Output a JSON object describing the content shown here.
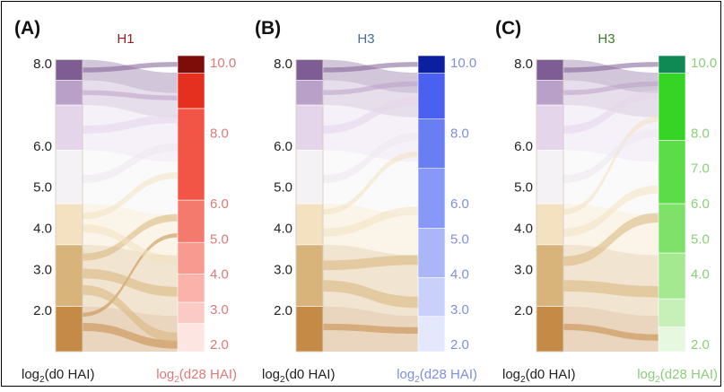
{
  "chart_data": [
    {
      "type": "sankey",
      "panel_label": "(A)",
      "title": "H1",
      "title_color": "#9b1c1c",
      "left_axis_label": "d0 HAI",
      "right_axis_label": "d28 HAI",
      "left_ticks": [
        2.0,
        3.0,
        4.0,
        5.0,
        6.0,
        8.0
      ],
      "right_ticks": [
        2.0,
        3.0,
        4.0,
        5.0,
        6.0,
        8.0,
        10.0
      ],
      "right_tick_color": "#e07a78",
      "left_segments": [
        {
          "from": 1.0,
          "to": 2.1,
          "color": "#c48a46",
          "opacity": 1.0
        },
        {
          "from": 2.1,
          "to": 3.6,
          "color": "#d8b47a",
          "opacity": 1.0
        },
        {
          "from": 3.6,
          "to": 4.6,
          "color": "#f3e1bf",
          "opacity": 1.0
        },
        {
          "from": 4.6,
          "to": 5.9,
          "color": "#f4f2f4",
          "opacity": 1.0
        },
        {
          "from": 5.9,
          "to": 7.0,
          "color": "#e4d5ea",
          "opacity": 1.0
        },
        {
          "from": 7.0,
          "to": 7.6,
          "color": "#b9a0c8",
          "opacity": 1.0
        },
        {
          "from": 7.6,
          "to": 8.1,
          "color": "#7e5d94",
          "opacity": 1.0
        }
      ],
      "right_segments": [
        {
          "from": 1.8,
          "to": 2.6,
          "color": "#fde5e2"
        },
        {
          "from": 2.6,
          "to": 3.2,
          "color": "#fbcac4"
        },
        {
          "from": 3.2,
          "to": 4.0,
          "color": "#fab2aa"
        },
        {
          "from": 4.0,
          "to": 4.9,
          "color": "#f89a90"
        },
        {
          "from": 4.9,
          "to": 6.1,
          "color": "#f57a6e"
        },
        {
          "from": 6.1,
          "to": 8.7,
          "color": "#f25546"
        },
        {
          "from": 8.7,
          "to": 9.7,
          "color": "#e6301f"
        },
        {
          "from": 9.7,
          "to": 10.2,
          "color": "#7e0d0a"
        }
      ],
      "flows": [
        {
          "from": 1.6,
          "to": 2.0,
          "width": 0.5,
          "color": "#c48a46"
        },
        {
          "from": 1.9,
          "to": 5.1,
          "width": 0.25,
          "color": "#c48a46"
        },
        {
          "from": 2.5,
          "to": 2.2,
          "width": 0.6,
          "color": "#d8b47a"
        },
        {
          "from": 2.9,
          "to": 3.5,
          "width": 0.6,
          "color": "#d8b47a"
        },
        {
          "from": 3.3,
          "to": 5.6,
          "width": 0.45,
          "color": "#d8b47a"
        },
        {
          "from": 4.0,
          "to": 4.4,
          "width": 0.5,
          "color": "#f3e1bf"
        },
        {
          "from": 4.3,
          "to": 6.8,
          "width": 0.4,
          "color": "#f3e1bf"
        },
        {
          "from": 5.2,
          "to": 7.6,
          "width": 0.5,
          "color": "#ede8ee"
        },
        {
          "from": 6.4,
          "to": 8.4,
          "width": 0.5,
          "color": "#e4d5ea"
        },
        {
          "from": 7.3,
          "to": 9.0,
          "width": 0.3,
          "color": "#b9a0c8"
        },
        {
          "from": 7.85,
          "to": 9.95,
          "width": 0.3,
          "color": "#7e5d94"
        }
      ]
    },
    {
      "type": "sankey",
      "panel_label": "(B)",
      "title": "H3",
      "title_color": "#4a6f95",
      "left_axis_label": "d0 HAI",
      "right_axis_label": "d28 HAI",
      "left_ticks": [
        2.0,
        3.0,
        4.0,
        5.0,
        6.0,
        8.0
      ],
      "right_ticks": [
        2.0,
        3.0,
        4.0,
        5.0,
        6.0,
        8.0,
        10.0
      ],
      "right_tick_color": "#7f8fe0",
      "left_segments": [
        {
          "from": 1.0,
          "to": 2.1,
          "color": "#c48a46",
          "opacity": 1.0
        },
        {
          "from": 2.1,
          "to": 3.6,
          "color": "#d8b47a",
          "opacity": 1.0
        },
        {
          "from": 3.6,
          "to": 4.6,
          "color": "#f3e1bf",
          "opacity": 1.0
        },
        {
          "from": 4.6,
          "to": 5.9,
          "color": "#f4f2f4",
          "opacity": 1.0
        },
        {
          "from": 5.9,
          "to": 7.0,
          "color": "#e4d5ea",
          "opacity": 1.0
        },
        {
          "from": 7.0,
          "to": 7.6,
          "color": "#b9a0c8",
          "opacity": 1.0
        },
        {
          "from": 7.6,
          "to": 8.1,
          "color": "#7e5d94",
          "opacity": 1.0
        }
      ],
      "right_segments": [
        {
          "from": 1.8,
          "to": 2.8,
          "color": "#e4e8fc"
        },
        {
          "from": 2.8,
          "to": 3.9,
          "color": "#c9d1fb"
        },
        {
          "from": 3.9,
          "to": 5.3,
          "color": "#a9b6f8"
        },
        {
          "from": 5.3,
          "to": 7.0,
          "color": "#8898f6"
        },
        {
          "from": 7.0,
          "to": 8.4,
          "color": "#6a7ef3"
        },
        {
          "from": 8.4,
          "to": 9.7,
          "color": "#4a61f0"
        },
        {
          "from": 9.7,
          "to": 10.2,
          "color": "#0c1f9e"
        }
      ],
      "flows": [
        {
          "from": 1.6,
          "to": 2.4,
          "width": 0.4,
          "color": "#c48a46"
        },
        {
          "from": 2.6,
          "to": 3.2,
          "width": 0.7,
          "color": "#d8b47a"
        },
        {
          "from": 3.1,
          "to": 4.4,
          "width": 0.6,
          "color": "#d8b47a"
        },
        {
          "from": 3.9,
          "to": 5.8,
          "width": 0.5,
          "color": "#f3e1bf"
        },
        {
          "from": 4.4,
          "to": 7.4,
          "width": 0.35,
          "color": "#f3e1bf"
        },
        {
          "from": 5.2,
          "to": 7.9,
          "width": 0.5,
          "color": "#ede8ee"
        },
        {
          "from": 6.4,
          "to": 8.9,
          "width": 0.5,
          "color": "#e4d5ea"
        },
        {
          "from": 7.3,
          "to": 9.4,
          "width": 0.3,
          "color": "#b9a0c8"
        },
        {
          "from": 7.85,
          "to": 9.95,
          "width": 0.3,
          "color": "#7e5d94"
        }
      ]
    },
    {
      "type": "sankey",
      "panel_label": "(C)",
      "title": "H3",
      "title_color": "#3f7a2c",
      "left_axis_label": "d0 HAI",
      "right_axis_label": "d28 HAI",
      "left_ticks": [
        2.0,
        3.0,
        4.0,
        5.0,
        6.0,
        8.0
      ],
      "right_ticks": [
        2.0,
        4.0,
        5.0,
        6.0,
        7.0,
        8.0,
        10.0
      ],
      "right_tick_color": "#8ccf7a",
      "left_segments": [
        {
          "from": 1.0,
          "to": 2.1,
          "color": "#c48a46",
          "opacity": 1.0
        },
        {
          "from": 2.1,
          "to": 3.6,
          "color": "#d8b47a",
          "opacity": 1.0
        },
        {
          "from": 3.6,
          "to": 4.6,
          "color": "#f3e1bf",
          "opacity": 1.0
        },
        {
          "from": 4.6,
          "to": 5.9,
          "color": "#f4f2f4",
          "opacity": 1.0
        },
        {
          "from": 5.9,
          "to": 7.0,
          "color": "#e4d5ea",
          "opacity": 1.0
        },
        {
          "from": 7.0,
          "to": 7.6,
          "color": "#b9a0c8",
          "opacity": 1.0
        },
        {
          "from": 7.6,
          "to": 8.1,
          "color": "#7e5d94",
          "opacity": 1.0
        }
      ],
      "right_segments": [
        {
          "from": 1.8,
          "to": 2.5,
          "color": "#e6f8e0"
        },
        {
          "from": 2.5,
          "to": 3.3,
          "color": "#c6f0b8"
        },
        {
          "from": 3.3,
          "to": 4.6,
          "color": "#a4e890"
        },
        {
          "from": 4.6,
          "to": 6.0,
          "color": "#7fe06a"
        },
        {
          "from": 6.0,
          "to": 7.8,
          "color": "#5cdc48"
        },
        {
          "from": 7.8,
          "to": 9.7,
          "color": "#36d424"
        },
        {
          "from": 9.7,
          "to": 10.2,
          "color": "#0f8a55"
        }
      ],
      "flows": [
        {
          "from": 1.6,
          "to": 2.2,
          "width": 0.4,
          "color": "#c48a46"
        },
        {
          "from": 2.6,
          "to": 3.5,
          "width": 0.7,
          "color": "#d8b47a"
        },
        {
          "from": 3.2,
          "to": 5.6,
          "width": 0.6,
          "color": "#d8b47a"
        },
        {
          "from": 3.9,
          "to": 6.4,
          "width": 0.5,
          "color": "#f3e1bf"
        },
        {
          "from": 4.4,
          "to": 8.4,
          "width": 0.35,
          "color": "#f3e1bf"
        },
        {
          "from": 5.2,
          "to": 8.0,
          "width": 0.5,
          "color": "#ede8ee"
        },
        {
          "from": 6.4,
          "to": 9.1,
          "width": 0.5,
          "color": "#e4d5ea"
        },
        {
          "from": 7.3,
          "to": 9.4,
          "width": 0.3,
          "color": "#b9a0c8"
        },
        {
          "from": 7.85,
          "to": 9.95,
          "width": 0.3,
          "color": "#7e5d94"
        }
      ]
    }
  ]
}
